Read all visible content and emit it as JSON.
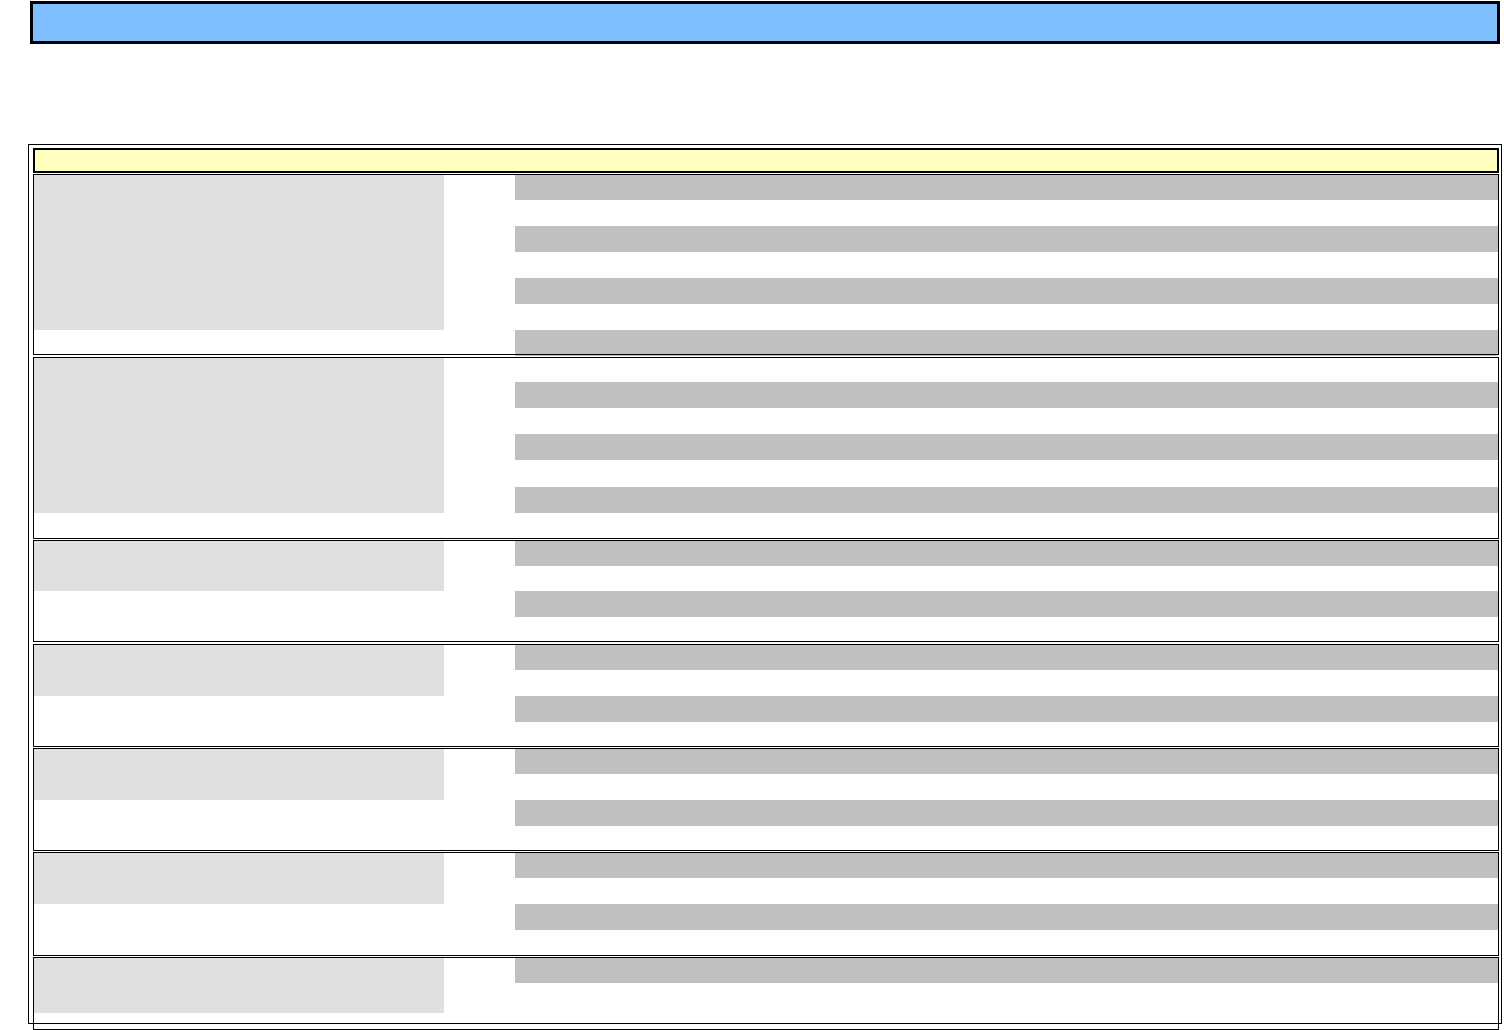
{
  "colors": {
    "header_fill": "#80bfff",
    "banner_fill": "#ffffc0",
    "label_cell_fill": "#e0e0e0",
    "field_bar_fill": "#c0c0c0",
    "border": "#000000"
  }
}
